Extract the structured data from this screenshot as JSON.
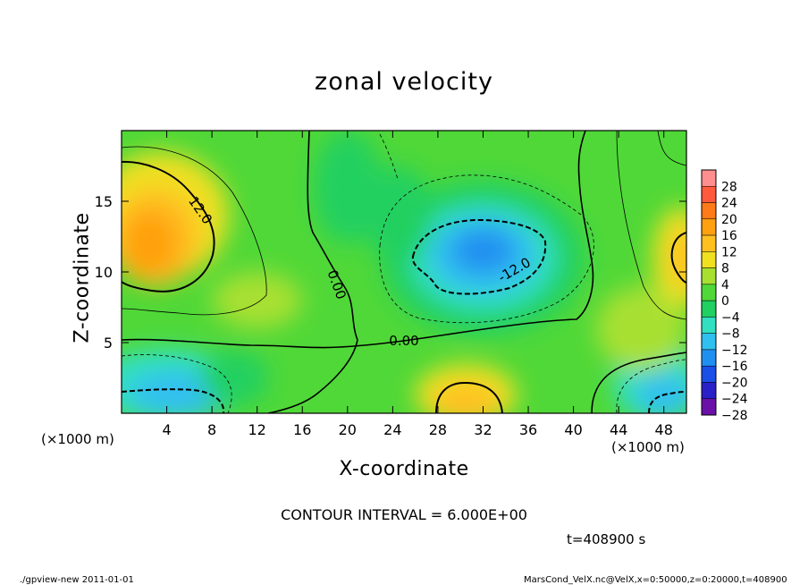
{
  "chart_data": {
    "type": "heatmap",
    "title": "zonal velocity",
    "xlabel": "X-coordinate",
    "ylabel": "Z-coordinate",
    "x_unit_label": "(×1000 m)",
    "y_unit_label": "(×1000 m)",
    "xlim": [
      0,
      50
    ],
    "ylim": [
      0,
      20
    ],
    "x_ticks": [
      "4",
      "8",
      "12",
      "16",
      "20",
      "24",
      "28",
      "32",
      "36",
      "40",
      "44",
      "48"
    ],
    "y_ticks": [
      "5",
      "10",
      "15"
    ],
    "x_tick_values": [
      4,
      8,
      12,
      16,
      20,
      24,
      28,
      32,
      36,
      40,
      44,
      48
    ],
    "y_tick_values": [
      5,
      10,
      15
    ],
    "colorbar_ticks": [
      "28",
      "24",
      "20",
      "16",
      "12",
      "8",
      "4",
      "0",
      "−4",
      "−8",
      "−12",
      "−16",
      "−20",
      "−24",
      "−28"
    ],
    "colorbar_levels": [
      30,
      26,
      22,
      18,
      14,
      10,
      6,
      2,
      -2,
      -6,
      -10,
      -14,
      -18,
      -22,
      -26,
      -30
    ],
    "colorbar_colors": [
      "#ff8e8e",
      "#ff5a3c",
      "#ff7a18",
      "#ffa010",
      "#ffc020",
      "#f0e020",
      "#a8e030",
      "#50d838",
      "#20d060",
      "#30e0c0",
      "#30c0f0",
      "#2090f0",
      "#1a4fe8",
      "#2a20c8",
      "#6a10a8"
    ],
    "contour_labels": [
      "12.0",
      "0.00",
      "0.00",
      "-12.0"
    ],
    "contour_interval_text": "CONTOUR INTERVAL = 6.000E+00",
    "time_text": "t=408900 s",
    "features": [
      {
        "name": "positive max upper-left",
        "x": 2.5,
        "z": 12.5,
        "value": 16
      },
      {
        "name": "negative min center",
        "x": 32,
        "z": 11,
        "value": -15
      },
      {
        "name": "negative min lower-left",
        "x": 5,
        "z": 1.5,
        "value": -12
      },
      {
        "name": "positive max lower-center",
        "x": 30.5,
        "z": 1,
        "value": 14
      },
      {
        "name": "positive max right edge",
        "x": 49.5,
        "z": 11,
        "value": 13
      },
      {
        "name": "negative min lower-right",
        "x": 48,
        "z": 1.5,
        "value": -10
      }
    ]
  },
  "footer": {
    "left": "./gpview-new   2011-01-01",
    "right": "MarsCond_VelX.nc@VelX,x=0:50000,z=0:20000,t=408900"
  }
}
